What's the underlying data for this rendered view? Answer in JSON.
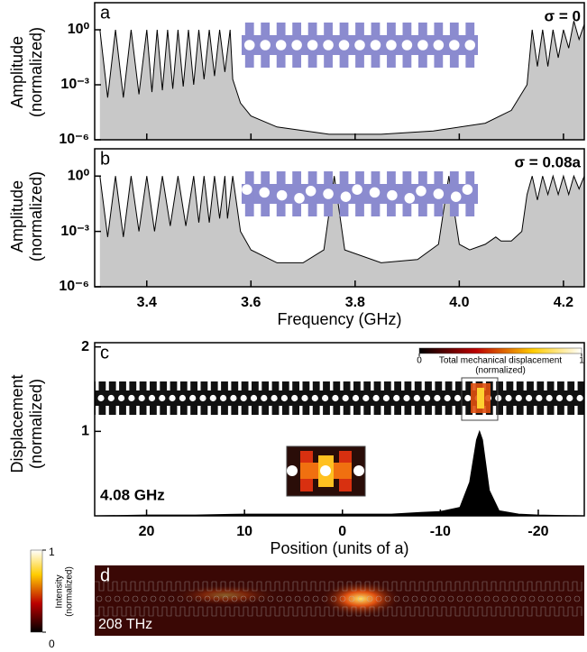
{
  "chart_data": [
    {
      "type": "line",
      "panel": "a",
      "annotation": "σ = 0",
      "ylabel": [
        "Amplitude",
        "(normalized)"
      ],
      "yscale": "log",
      "color": "#000000",
      "fill": "#c8c8c8",
      "xlim": [
        3.3,
        4.24
      ],
      "ylim": [
        1e-06,
        30
      ],
      "yticks": [
        {
          "value": 1e-06,
          "label": "10⁻⁶"
        },
        {
          "value": 0.001,
          "label": "10⁻³"
        },
        {
          "value": 1,
          "label": "10⁰"
        }
      ],
      "xticks": [
        3.4,
        3.6,
        3.8,
        4,
        4.2
      ],
      "x": [
        3.31,
        3.325,
        3.34,
        3.355,
        3.37,
        3.385,
        3.4,
        3.41,
        3.42,
        3.43,
        3.44,
        3.45,
        3.46,
        3.47,
        3.48,
        3.49,
        3.5,
        3.51,
        3.52,
        3.53,
        3.54,
        3.55,
        3.56,
        3.565,
        3.58,
        3.6,
        3.65,
        3.75,
        3.85,
        3.95,
        4.05,
        4.1,
        4.13,
        4.14,
        4.15,
        4.16,
        4.17,
        4.18,
        4.19,
        4.2,
        4.21,
        4.22,
        4.23,
        4.24
      ],
      "values": [
        1,
        0.0002,
        1,
        0.0002,
        1,
        0.0003,
        1,
        0.0004,
        1,
        0.0005,
        1,
        0.0006,
        1,
        0.0008,
        1,
        0.001,
        1,
        0.002,
        1,
        0.003,
        1,
        0.005,
        1,
        0.002,
        0.0001,
        2e-05,
        5e-06,
        2e-06,
        2e-06,
        3e-06,
        8e-06,
        4e-05,
        0.001,
        1,
        0.01,
        1,
        0.01,
        1,
        0.03,
        1,
        0.1,
        3,
        0.3,
        2
      ]
    },
    {
      "type": "line",
      "panel": "b",
      "annotation": "σ = 0.08a",
      "ylabel": [
        "Amplitude",
        "(normalized)"
      ],
      "xlabel": "Frequency (GHz)",
      "yscale": "log",
      "color": "#000000",
      "fill": "#c8c8c8",
      "xlim": [
        3.3,
        4.24
      ],
      "ylim": [
        1e-06,
        30
      ],
      "yticks": [
        {
          "value": 1e-06,
          "label": "10⁻⁶"
        },
        {
          "value": 0.001,
          "label": "10⁻³"
        },
        {
          "value": 1,
          "label": "10⁰"
        }
      ],
      "xticks": [
        3.4,
        3.6,
        3.8,
        {
          "value": 4,
          "label": "4.0"
        },
        4.2
      ],
      "x": [
        3.31,
        3.325,
        3.34,
        3.355,
        3.37,
        3.385,
        3.4,
        3.415,
        3.43,
        3.445,
        3.46,
        3.475,
        3.49,
        3.5,
        3.51,
        3.52,
        3.53,
        3.54,
        3.55,
        3.555,
        3.565,
        3.58,
        3.6,
        3.65,
        3.7,
        3.74,
        3.76,
        3.78,
        3.85,
        3.92,
        3.96,
        3.98,
        4,
        4.02,
        4.05,
        4.07,
        4.08,
        4.1,
        4.12,
        4.13,
        4.14,
        4.15,
        4.16,
        4.17,
        4.18,
        4.19,
        4.2,
        4.21,
        4.22,
        4.23,
        4.24
      ],
      "values": [
        1,
        0.0005,
        1,
        0.0005,
        1,
        0.001,
        1,
        0.001,
        1,
        0.002,
        1,
        0.002,
        1,
        0.003,
        1,
        0.003,
        1,
        0.005,
        1,
        0.005,
        1,
        0.001,
        0.0001,
        2e-05,
        2e-05,
        0.0001,
        1,
        0.0001,
        2e-05,
        3e-05,
        0.0002,
        1,
        0.0002,
        0.0001,
        0.0002,
        0.0005,
        0.0003,
        0.0003,
        0.001,
        0.1,
        1,
        0.05,
        1,
        0.1,
        1,
        0.1,
        1,
        0.1,
        1,
        0.2,
        1
      ]
    },
    {
      "type": "line",
      "panel": "c",
      "annotation": "4.08 GHz",
      "ylabel": [
        "Displacement",
        "(normalized)"
      ],
      "xlabel": "Position (units of a)",
      "color": "#000000",
      "fill": "#000000",
      "xlim": [
        25.3,
        -24.7
      ],
      "ylim": [
        0,
        2.05
      ],
      "yticks": [
        1,
        2
      ],
      "xticks": [
        20,
        10,
        0,
        -10,
        -20
      ],
      "colorbar": {
        "ticks": [
          0,
          1
        ],
        "label": [
          "Total mechanical displacement",
          "(normalized)"
        ]
      },
      "x": [
        25,
        20,
        15,
        10,
        5,
        0,
        -5,
        -8,
        -10,
        -12,
        -13,
        -13.7,
        -14,
        -14.3,
        -15,
        -16,
        -18,
        -20,
        -24.5
      ],
      "values": [
        0,
        0.01,
        0.01,
        0.02,
        0.02,
        0.02,
        0.02,
        0.04,
        0.05,
        0.1,
        0.4,
        0.9,
        1,
        0.9,
        0.3,
        0.06,
        0.02,
        0.01,
        0
      ]
    },
    {
      "type": "image",
      "panel": "d",
      "annotation": "208 THz",
      "colorbar": {
        "ticks": [
          0,
          1
        ],
        "label": [
          "Intensity",
          "(normalized)"
        ]
      }
    }
  ]
}
